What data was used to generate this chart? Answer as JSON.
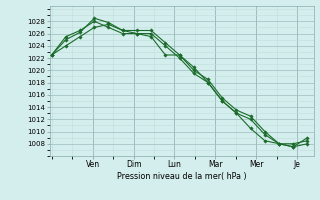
{
  "background_color": "#d4eeed",
  "grid_color_minor": "#c0dddc",
  "grid_color_major": "#9bbdbc",
  "line_color": "#1a6b2a",
  "marker_color": "#1a6b2a",
  "xlabel": "Pression niveau de la mer( hPa )",
  "ylim": [
    1006,
    1030
  ],
  "yticks": [
    1008,
    1010,
    1012,
    1014,
    1016,
    1018,
    1020,
    1022,
    1024,
    1026,
    1028
  ],
  "x_day_labels": [
    "Ven",
    "Dim",
    "Lun",
    "Mar",
    "Mer",
    "Je"
  ],
  "x_day_positions": [
    2.0,
    4.0,
    6.0,
    8.0,
    10.0,
    12.0
  ],
  "series": [
    [
      1022.5,
      1024.0,
      1025.5,
      1027.0,
      1027.5,
      1026.5,
      1026.0,
      1025.5,
      1022.5,
      1022.5,
      1020.5,
      1018.0,
      1015.0,
      1013.0,
      1010.5,
      1008.5,
      1008.0,
      1008.0,
      1008.5
    ],
    [
      1022.5,
      1025.0,
      1026.2,
      1028.5,
      1027.8,
      1026.5,
      1026.5,
      1026.5,
      1024.5,
      1022.5,
      1020.0,
      1018.5,
      1015.5,
      1013.5,
      1012.5,
      1010.0,
      1008.0,
      1007.5,
      1008.0
    ],
    [
      1022.5,
      1025.5,
      1026.5,
      1028.0,
      1027.0,
      1026.0,
      1026.0,
      1026.0,
      1024.0,
      1022.0,
      1019.5,
      1018.0,
      1015.0,
      1013.0,
      1012.0,
      1009.5,
      1008.0,
      1007.5,
      1009.0
    ]
  ],
  "n_points": 19,
  "x_start": 0.0,
  "x_end": 12.5,
  "xlim_min": -0.1,
  "xlim_max": 12.8
}
